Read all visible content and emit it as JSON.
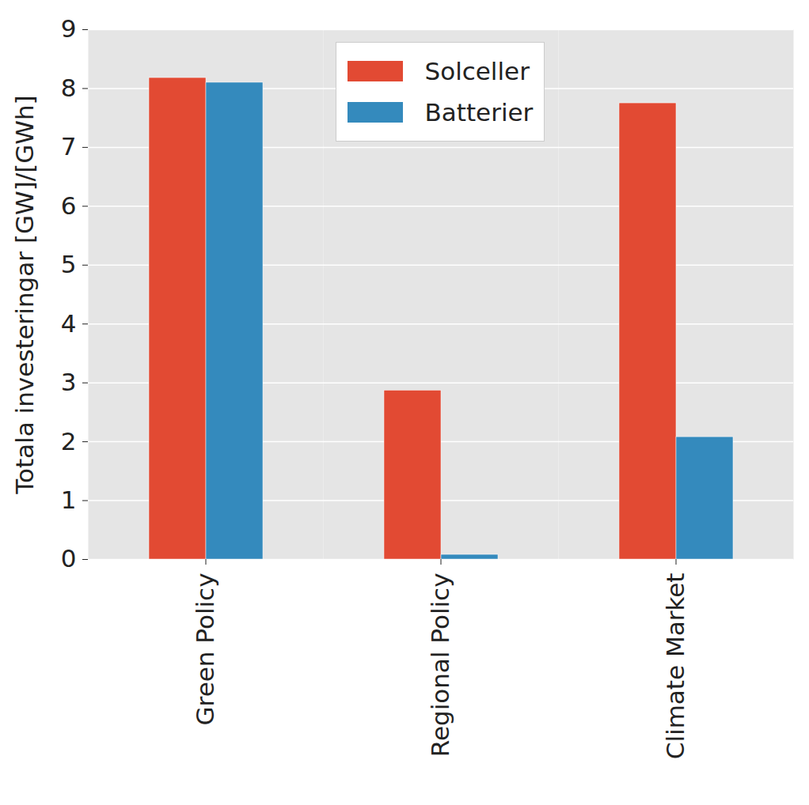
{
  "chart_data": {
    "type": "bar",
    "categories": [
      "Green Policy",
      "Regional Policy",
      "Climate Market"
    ],
    "series": [
      {
        "name": "Solceller",
        "color": "#e24a33",
        "values": [
          8.18,
          2.87,
          7.75
        ]
      },
      {
        "name": "Batterier",
        "color": "#348abd",
        "values": [
          8.1,
          0.08,
          2.08
        ]
      }
    ],
    "y_label": "Totala investeringar [GW]/[GWh]",
    "ylim": [
      0,
      9
    ],
    "yticks": [
      0,
      1,
      2,
      3,
      4,
      5,
      6,
      7,
      8,
      9
    ],
    "grid": true,
    "legend": "upper center"
  }
}
